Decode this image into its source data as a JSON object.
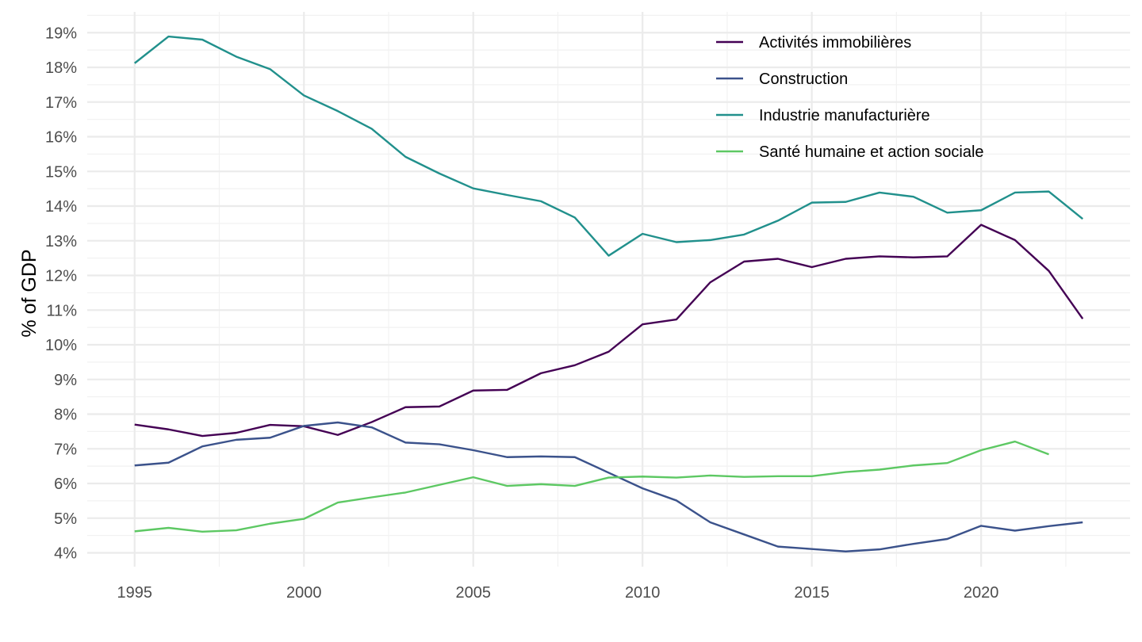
{
  "chart_data": {
    "type": "line",
    "title": "",
    "xlabel": "",
    "ylabel": "% of GDP",
    "x": [
      1995,
      1996,
      1997,
      1998,
      1999,
      2000,
      2001,
      2002,
      2003,
      2004,
      2005,
      2006,
      2007,
      2008,
      2009,
      2010,
      2011,
      2012,
      2013,
      2014,
      2015,
      2016,
      2017,
      2018,
      2019,
      2020,
      2021,
      2022,
      2023
    ],
    "xlim": [
      1993.6,
      2024.4
    ],
    "ylim": [
      3.6,
      19.6
    ],
    "x_ticks": [
      1995,
      2000,
      2005,
      2010,
      2015,
      2020
    ],
    "x_tick_labels": [
      "1995",
      "2000",
      "2005",
      "2010",
      "2015",
      "2020"
    ],
    "y_ticks": [
      4,
      5,
      6,
      7,
      8,
      9,
      10,
      11,
      12,
      13,
      14,
      15,
      16,
      17,
      18,
      19
    ],
    "y_tick_labels": [
      "4%",
      "5%",
      "6%",
      "7%",
      "8%",
      "9%",
      "10%",
      "11%",
      "12%",
      "13%",
      "14%",
      "15%",
      "16%",
      "17%",
      "18%",
      "19%"
    ],
    "grid": true,
    "legend_position": "top-right",
    "series": [
      {
        "name": "Activités immobilières",
        "color": "#440154",
        "values": [
          7.7,
          7.56,
          7.37,
          7.46,
          7.69,
          7.65,
          7.4,
          7.77,
          8.2,
          8.22,
          8.68,
          8.7,
          9.18,
          9.41,
          9.8,
          10.59,
          10.73,
          11.8,
          12.4,
          12.48,
          12.24,
          12.48,
          12.55,
          12.52,
          12.55,
          13.46,
          13.02,
          12.13,
          10.75
        ]
      },
      {
        "name": "Construction",
        "color": "#3B528B",
        "values": [
          6.52,
          6.6,
          7.07,
          7.26,
          7.32,
          7.66,
          7.76,
          7.62,
          7.18,
          7.13,
          6.96,
          6.76,
          6.78,
          6.76,
          6.31,
          5.86,
          5.51,
          4.88,
          4.53,
          4.18,
          4.11,
          4.04,
          4.1,
          4.26,
          4.4,
          4.78,
          4.64,
          4.77,
          4.88
        ]
      },
      {
        "name": "Industrie manufacturière",
        "color": "#21908C",
        "values": [
          18.12,
          18.89,
          18.8,
          18.31,
          17.95,
          17.19,
          16.74,
          16.23,
          15.42,
          14.94,
          14.51,
          14.32,
          14.14,
          13.67,
          12.57,
          13.2,
          12.96,
          13.02,
          13.18,
          13.58,
          14.1,
          14.12,
          14.39,
          14.27,
          13.81,
          13.88,
          14.39,
          14.42,
          13.63
        ]
      },
      {
        "name": "Santé humaine et action sociale",
        "color": "#5DC863",
        "values": [
          4.62,
          4.72,
          4.61,
          4.65,
          4.84,
          4.98,
          5.45,
          5.6,
          5.74,
          5.96,
          6.18,
          5.93,
          5.98,
          5.93,
          6.17,
          6.2,
          6.17,
          6.23,
          6.19,
          6.21,
          6.21,
          6.33,
          6.4,
          6.52,
          6.59,
          6.96,
          7.21,
          6.84,
          null
        ]
      }
    ]
  }
}
